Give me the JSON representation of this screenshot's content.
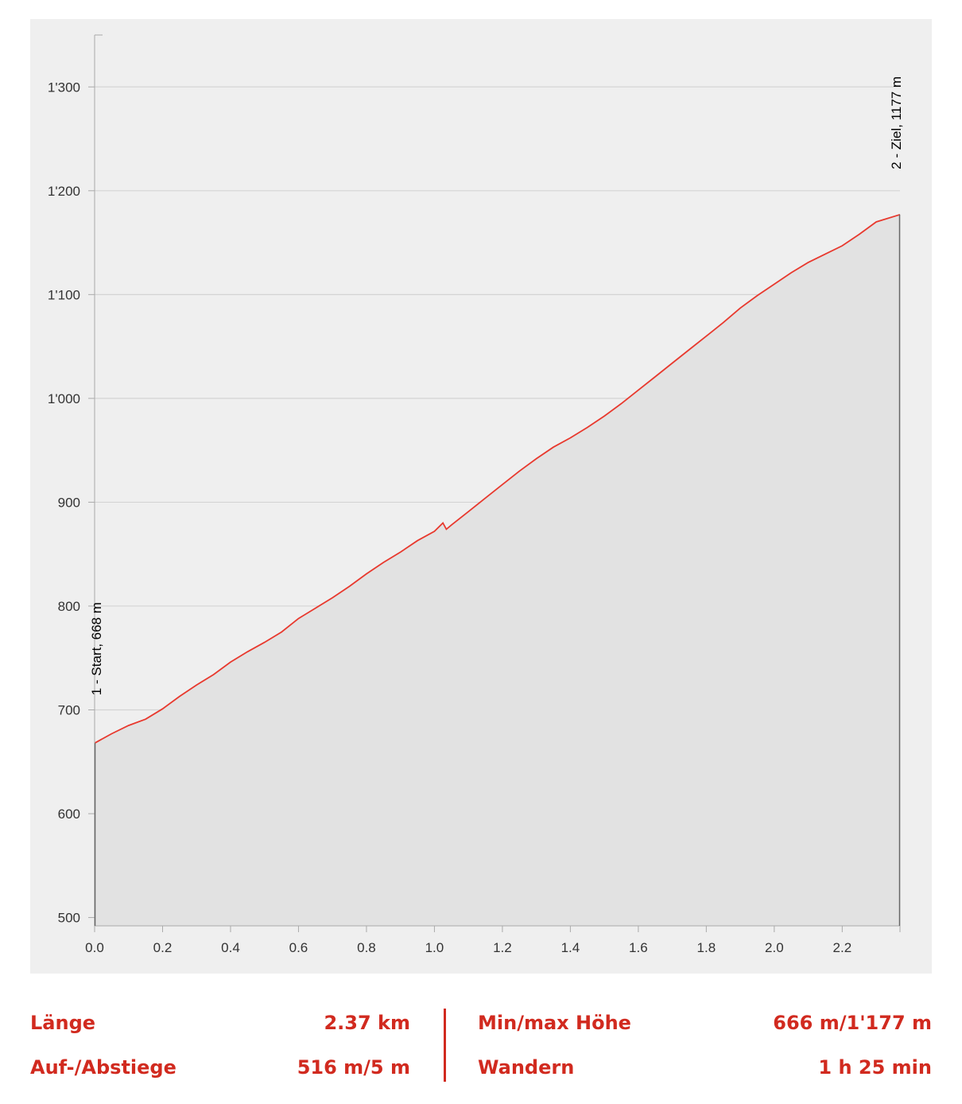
{
  "chart_data": {
    "type": "area",
    "xlim": [
      0,
      2.37
    ],
    "ylim": [
      492,
      1350
    ],
    "x_ticks": [
      0.0,
      0.2,
      0.4,
      0.6,
      0.8,
      1.0,
      1.2,
      1.4,
      1.6,
      1.8,
      2.0,
      2.2
    ],
    "x_tick_labels": [
      "0.0",
      "0.2",
      "0.4",
      "0.6",
      "0.8",
      "1.0",
      "1.2",
      "1.4",
      "1.6",
      "1.8",
      "2.0",
      "2.2"
    ],
    "y_ticks": [
      500,
      600,
      700,
      800,
      900,
      1000,
      1100,
      1200,
      1300
    ],
    "y_tick_labels": [
      "500",
      "600",
      "700",
      "800",
      "900",
      "1'000",
      "1'100",
      "1'200",
      "1'300"
    ],
    "grid": true,
    "line_color": "#e8392e",
    "fill_color": "#e2e2e2",
    "points": [
      [
        0.0,
        668
      ],
      [
        0.05,
        677
      ],
      [
        0.1,
        685
      ],
      [
        0.15,
        691
      ],
      [
        0.2,
        701
      ],
      [
        0.25,
        713
      ],
      [
        0.3,
        724
      ],
      [
        0.35,
        734
      ],
      [
        0.4,
        746
      ],
      [
        0.45,
        756
      ],
      [
        0.5,
        765
      ],
      [
        0.55,
        775
      ],
      [
        0.6,
        788
      ],
      [
        0.65,
        798
      ],
      [
        0.7,
        808
      ],
      [
        0.75,
        819
      ],
      [
        0.8,
        831
      ],
      [
        0.85,
        842
      ],
      [
        0.9,
        852
      ],
      [
        0.95,
        863
      ],
      [
        1.0,
        872
      ],
      [
        1.025,
        880
      ],
      [
        1.035,
        874
      ],
      [
        1.05,
        878
      ],
      [
        1.1,
        891
      ],
      [
        1.15,
        904
      ],
      [
        1.2,
        917
      ],
      [
        1.25,
        930
      ],
      [
        1.3,
        942
      ],
      [
        1.35,
        953
      ],
      [
        1.4,
        962
      ],
      [
        1.45,
        972
      ],
      [
        1.5,
        983
      ],
      [
        1.55,
        995
      ],
      [
        1.6,
        1008
      ],
      [
        1.65,
        1021
      ],
      [
        1.7,
        1034
      ],
      [
        1.75,
        1047
      ],
      [
        1.8,
        1060
      ],
      [
        1.85,
        1073
      ],
      [
        1.9,
        1087
      ],
      [
        1.95,
        1099
      ],
      [
        2.0,
        1110
      ],
      [
        2.05,
        1121
      ],
      [
        2.1,
        1131
      ],
      [
        2.15,
        1139
      ],
      [
        2.2,
        1147
      ],
      [
        2.25,
        1158
      ],
      [
        2.3,
        1170
      ],
      [
        2.37,
        1177
      ]
    ],
    "annotations": [
      {
        "x": 0.0,
        "y": 668,
        "text": "1 - Start, 668 m"
      },
      {
        "x": 2.37,
        "y": 1177,
        "text": "2 - Ziel, 1177 m"
      }
    ]
  },
  "stats": {
    "length_label": "Länge",
    "length_value": "2.37 km",
    "ascent_label": "Auf-/Abstiege",
    "ascent_value": "516 m/5 m",
    "minmax_label": "Min/max Höhe",
    "minmax_value": "666 m/1'177 m",
    "activity_label": "Wandern",
    "activity_value": "1 h 25 min"
  }
}
